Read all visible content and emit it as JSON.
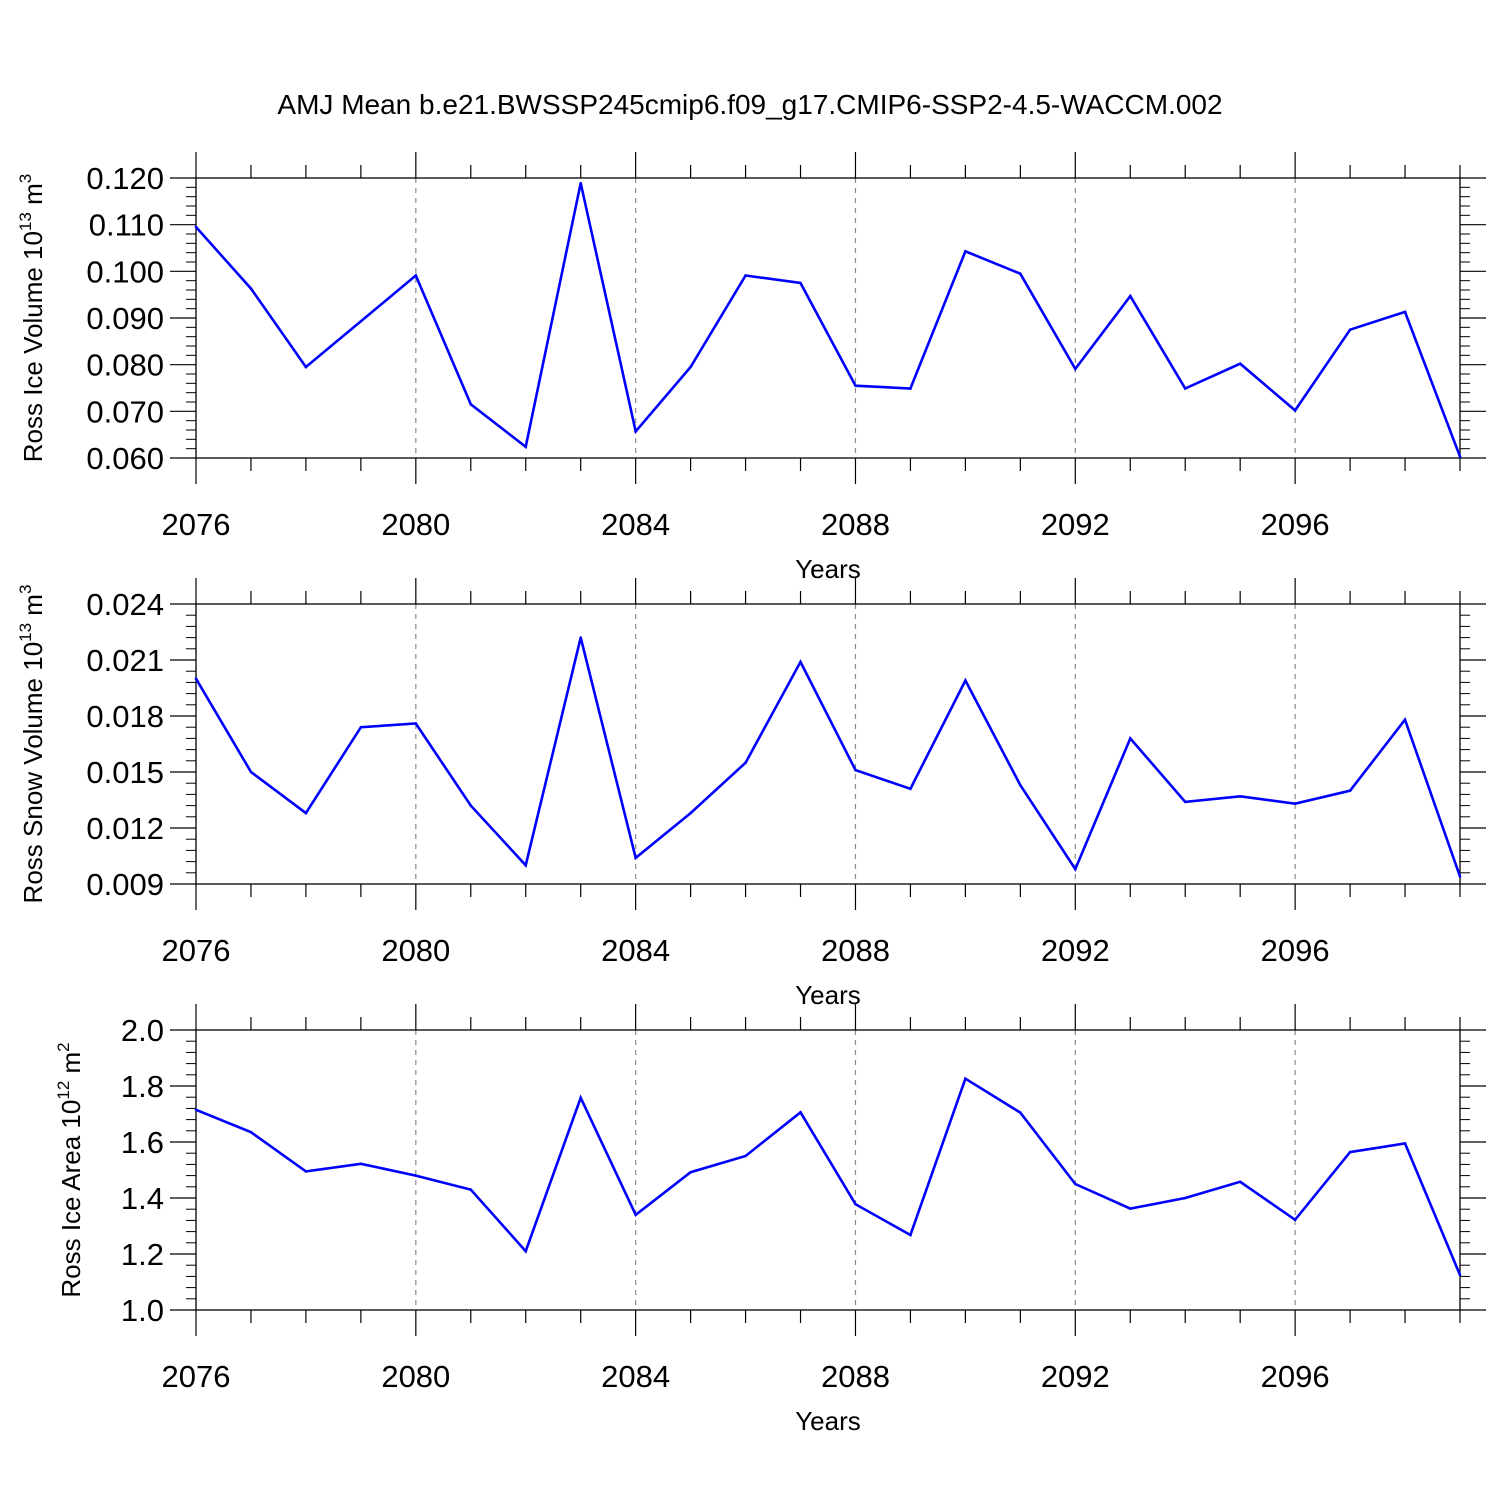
{
  "title": "AMJ Mean b.e21.BWSSP245cmip6.f09_g17.CMIP6-SSP2-4.5-WACCM.002",
  "line_color": "#0000ff",
  "chart_data": [
    {
      "type": "line",
      "ylabel": {
        "text": "Ross Ice Volume 10",
        "sup": "13",
        "unit": " m",
        "unit_sup": "3"
      },
      "xlabel": "Years",
      "xlim": [
        2076,
        2099
      ],
      "ylim": [
        0.06,
        0.12
      ],
      "yticks": [
        0.06,
        0.07,
        0.08,
        0.09,
        0.1,
        0.11,
        0.12
      ],
      "ytick_labels": [
        "0.060",
        "0.070",
        "0.080",
        "0.090",
        "0.100",
        "0.110",
        "0.120"
      ],
      "xticks": [
        2076,
        2080,
        2084,
        2088,
        2092,
        2096
      ],
      "xtick_labels": [
        "2076",
        "2080",
        "2084",
        "2088",
        "2092",
        "2096"
      ],
      "grid": "vertical dashed at major x ticks",
      "x": [
        2076,
        2077,
        2078,
        2079,
        2080,
        2081,
        2082,
        2083,
        2084,
        2085,
        2086,
        2087,
        2088,
        2089,
        2090,
        2091,
        2092,
        2093,
        2094,
        2095,
        2096,
        2097,
        2098,
        2099
      ],
      "values": [
        0.1095,
        0.0963,
        0.0795,
        0.0893,
        0.0991,
        0.0715,
        0.0624,
        0.1189,
        0.0657,
        0.0795,
        0.0991,
        0.0975,
        0.0755,
        0.0749,
        0.1043,
        0.0995,
        0.0791,
        0.0947,
        0.0749,
        0.0802,
        0.0702,
        0.0875,
        0.0913,
        0.0603
      ]
    },
    {
      "type": "line",
      "ylabel": {
        "text": "Ross Snow Volume 10",
        "sup": "13",
        "unit": " m",
        "unit_sup": "3"
      },
      "xlabel": "Years",
      "xlim": [
        2076,
        2099
      ],
      "ylim": [
        0.009,
        0.024
      ],
      "yticks": [
        0.009,
        0.012,
        0.015,
        0.018,
        0.021,
        0.024
      ],
      "ytick_labels": [
        "0.009",
        "0.012",
        "0.015",
        "0.018",
        "0.021",
        "0.024"
      ],
      "xticks": [
        2076,
        2080,
        2084,
        2088,
        2092,
        2096
      ],
      "xtick_labels": [
        "2076",
        "2080",
        "2084",
        "2088",
        "2092",
        "2096"
      ],
      "grid": "vertical dashed at major x ticks",
      "x": [
        2076,
        2077,
        2078,
        2079,
        2080,
        2081,
        2082,
        2083,
        2084,
        2085,
        2086,
        2087,
        2088,
        2089,
        2090,
        2091,
        2092,
        2093,
        2094,
        2095,
        2096,
        2097,
        2098,
        2099
      ],
      "values": [
        0.02,
        0.015,
        0.0128,
        0.0174,
        0.0176,
        0.0132,
        0.01,
        0.0222,
        0.0104,
        0.0128,
        0.0155,
        0.0209,
        0.0151,
        0.0141,
        0.0199,
        0.0143,
        0.0098,
        0.0168,
        0.0134,
        0.0137,
        0.0133,
        0.014,
        0.0178,
        0.0094
      ]
    },
    {
      "type": "line",
      "ylabel": {
        "text": "Ross Ice Area 10",
        "sup": "12",
        "unit": " m",
        "unit_sup": "2"
      },
      "xlabel": "Years",
      "xlim": [
        2076,
        2099
      ],
      "ylim": [
        1.0,
        2.0
      ],
      "yticks": [
        1.0,
        1.2,
        1.4,
        1.6,
        1.8,
        2.0
      ],
      "ytick_labels": [
        "1.0",
        "1.2",
        "1.4",
        "1.6",
        "1.8",
        "2.0"
      ],
      "xticks": [
        2076,
        2080,
        2084,
        2088,
        2092,
        2096
      ],
      "xtick_labels": [
        "2076",
        "2080",
        "2084",
        "2088",
        "2092",
        "2096"
      ],
      "grid": "vertical dashed at major x ticks",
      "x": [
        2076,
        2077,
        2078,
        2079,
        2080,
        2081,
        2082,
        2083,
        2084,
        2085,
        2086,
        2087,
        2088,
        2089,
        2090,
        2091,
        2092,
        2093,
        2094,
        2095,
        2096,
        2097,
        2098,
        2099
      ],
      "values": [
        1.715,
        1.635,
        1.495,
        1.522,
        1.48,
        1.43,
        1.21,
        1.758,
        1.34,
        1.492,
        1.55,
        1.706,
        1.378,
        1.268,
        1.826,
        1.705,
        1.45,
        1.362,
        1.4,
        1.458,
        1.322,
        1.564,
        1.595,
        1.125
      ]
    }
  ]
}
